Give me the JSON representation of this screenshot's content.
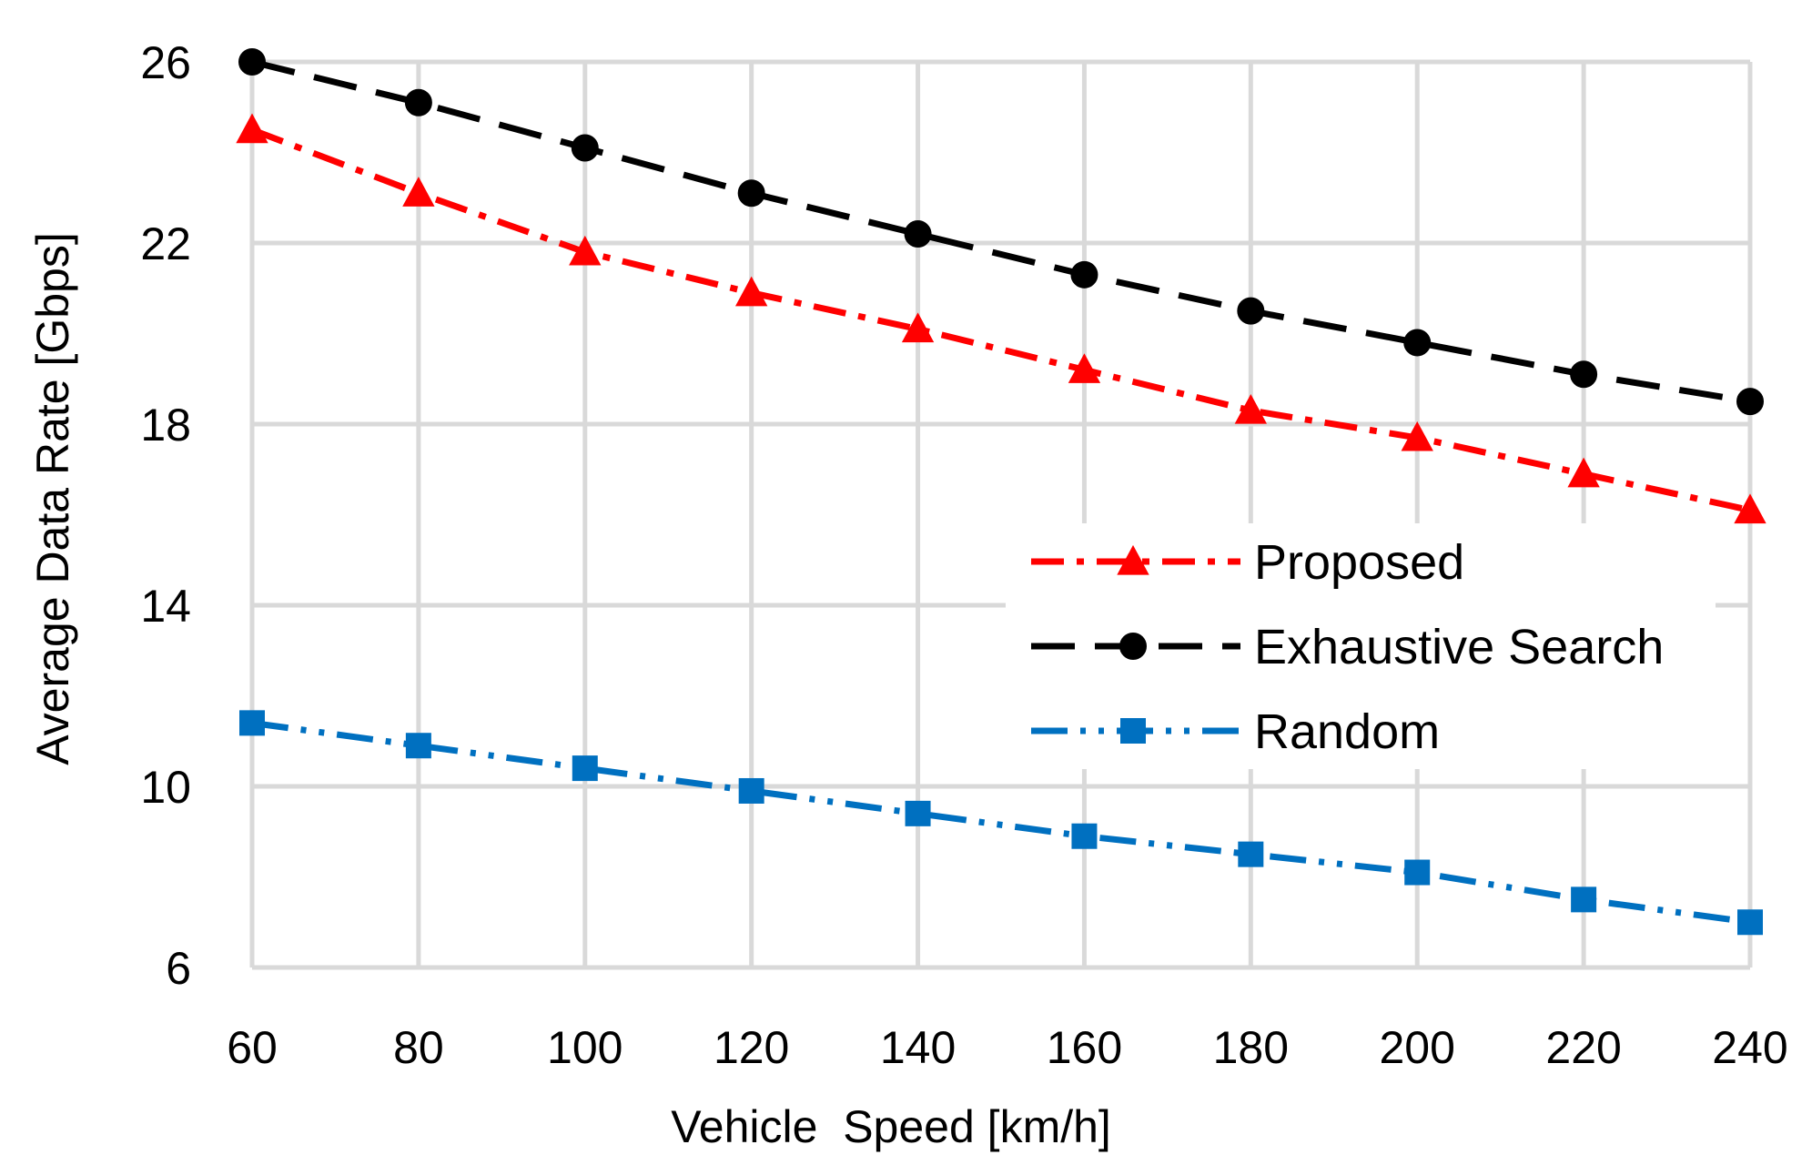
{
  "chart_data": {
    "type": "line",
    "title": "",
    "xlabel": "Vehicle  Speed [km/h]",
    "ylabel": "Average Data Rate [Gbps]",
    "x": [
      60,
      80,
      100,
      120,
      140,
      160,
      180,
      200,
      220,
      240
    ],
    "x_tick_labels": [
      "60",
      "80",
      "100",
      "120",
      "140",
      "160",
      "180",
      "200",
      "220",
      "240"
    ],
    "y_tick_values": [
      6,
      10,
      14,
      18,
      22,
      26
    ],
    "y_tick_labels": [
      "6",
      "10",
      "14",
      "18",
      "22",
      "26"
    ],
    "xlim": [
      60,
      240
    ],
    "ylim": [
      6,
      26
    ],
    "grid": true,
    "legend_position": "center-right",
    "series": [
      {
        "name": "Proposed",
        "color": "#ff0000",
        "marker": "triangle",
        "line_style": "dash-dot",
        "values": [
          24.5,
          23.1,
          21.8,
          20.9,
          20.1,
          19.2,
          18.3,
          17.7,
          16.9,
          16.1
        ]
      },
      {
        "name": "Exhaustive Search",
        "color": "#000000",
        "marker": "circle",
        "line_style": "long-dash",
        "values": [
          26.0,
          25.1,
          24.1,
          23.1,
          22.2,
          21.3,
          20.5,
          19.8,
          19.1,
          18.5
        ]
      },
      {
        "name": "Random",
        "color": "#0070c0",
        "marker": "square",
        "line_style": "long-dash-dot-dot",
        "values": [
          11.4,
          10.9,
          10.4,
          9.9,
          9.4,
          8.9,
          8.5,
          8.1,
          7.5,
          7.0
        ]
      }
    ]
  }
}
